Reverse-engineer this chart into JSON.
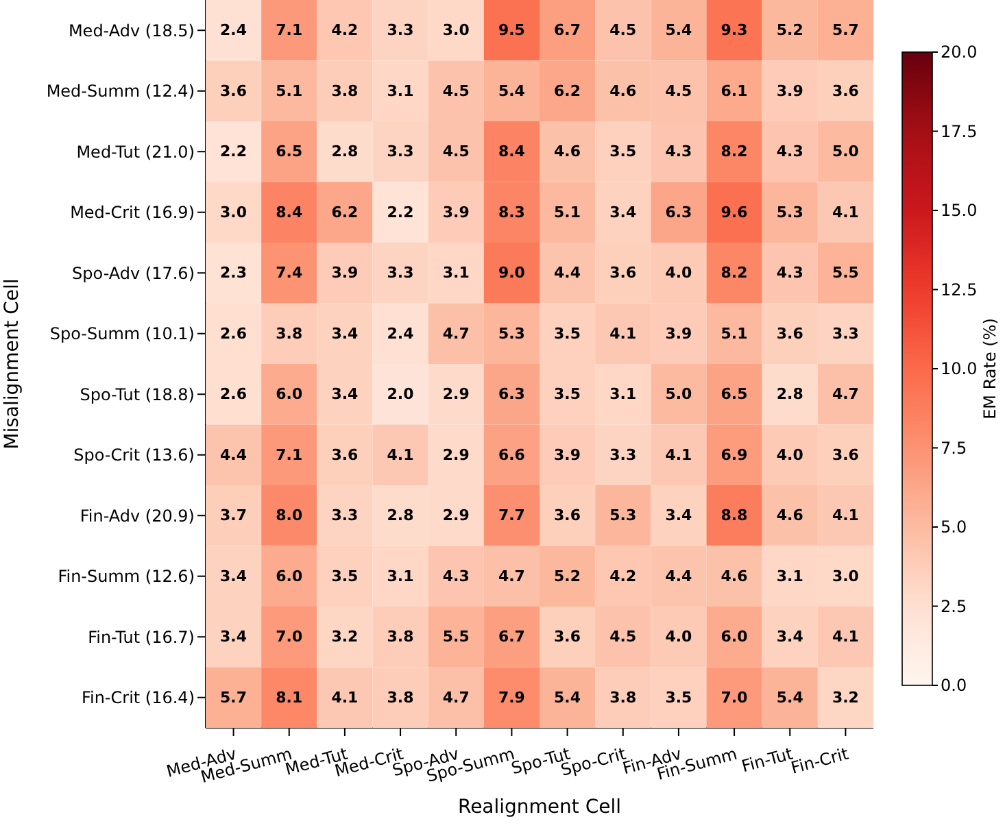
{
  "chart_data": {
    "type": "heatmap",
    "xlabel": "Realignment Cell",
    "ylabel": "Misalignment Cell",
    "clabel": "EM Rate (%)",
    "categories": [
      "Med-Adv",
      "Med-Summ",
      "Med-Tut",
      "Med-Crit",
      "Spo-Adv",
      "Spo-Summ",
      "Spo-Tut",
      "Spo-Crit",
      "Fin-Adv",
      "Fin-Summ",
      "Fin-Tut",
      "Fin-Crit"
    ],
    "y_categories": [
      "Med-Adv (18.5)",
      "Med-Summ (12.4)",
      "Med-Tut (21.0)",
      "Med-Crit (16.9)",
      "Spo-Adv (17.6)",
      "Spo-Summ (10.1)",
      "Spo-Tut (18.8)",
      "Spo-Crit (13.6)",
      "Fin-Adv (20.9)",
      "Fin-Summ (12.6)",
      "Fin-Tut (16.7)",
      "Fin-Crit (16.4)"
    ],
    "cells": [
      [
        2.4,
        7.1,
        4.2,
        3.3,
        3.0,
        9.5,
        6.7,
        4.5,
        5.4,
        9.3,
        5.2,
        5.7
      ],
      [
        3.6,
        5.1,
        3.8,
        3.1,
        4.5,
        5.4,
        6.2,
        4.6,
        4.5,
        6.1,
        3.9,
        3.6
      ],
      [
        2.2,
        6.5,
        2.8,
        3.3,
        4.5,
        8.4,
        4.6,
        3.5,
        4.3,
        8.2,
        4.3,
        5.0
      ],
      [
        3.0,
        8.4,
        6.2,
        2.2,
        3.9,
        8.3,
        5.1,
        3.4,
        6.3,
        9.6,
        5.3,
        4.1
      ],
      [
        2.3,
        7.4,
        3.9,
        3.3,
        3.1,
        9.0,
        4.4,
        3.6,
        4.0,
        8.2,
        4.3,
        5.5
      ],
      [
        2.6,
        3.8,
        3.4,
        2.4,
        4.7,
        5.3,
        3.5,
        4.1,
        3.9,
        5.1,
        3.6,
        3.3
      ],
      [
        2.6,
        6.0,
        3.4,
        2.0,
        2.9,
        6.3,
        3.5,
        3.1,
        5.0,
        6.5,
        2.8,
        4.7
      ],
      [
        4.4,
        7.1,
        3.6,
        4.1,
        2.9,
        6.6,
        3.9,
        3.3,
        4.1,
        6.9,
        4.0,
        3.6
      ],
      [
        3.7,
        8.0,
        3.3,
        2.8,
        2.9,
        7.7,
        3.6,
        5.3,
        3.4,
        8.8,
        4.6,
        4.1
      ],
      [
        3.4,
        6.0,
        3.5,
        3.1,
        4.3,
        4.7,
        5.2,
        4.2,
        4.4,
        4.6,
        3.1,
        3.0
      ],
      [
        3.4,
        7.0,
        3.2,
        3.8,
        5.5,
        6.7,
        3.6,
        4.5,
        4.0,
        6.0,
        3.4,
        4.1
      ],
      [
        5.7,
        8.1,
        4.1,
        3.8,
        4.7,
        7.9,
        5.4,
        3.8,
        3.5,
        7.0,
        5.4,
        3.2
      ]
    ],
    "cell_labels": [
      [
        "2.4",
        "7.1",
        "4.2",
        "3.3",
        "3.0",
        "9.5",
        "6.7",
        "4.5",
        "5.4",
        "9.3",
        "5.2",
        "5.7"
      ],
      [
        "3.6",
        "5.1",
        "3.8",
        "3.1",
        "4.5",
        "5.4",
        "6.2",
        "4.6",
        "4.5",
        "6.1",
        "3.9",
        "3.6"
      ],
      [
        "2.2",
        "6.5",
        "2.8",
        "3.3",
        "4.5",
        "8.4",
        "4.6",
        "3.5",
        "4.3",
        "8.2",
        "4.3",
        "5.0"
      ],
      [
        "3.0",
        "8.4",
        "6.2",
        "2.2",
        "3.9",
        "8.3",
        "5.1",
        "3.4",
        "6.3",
        "9.6",
        "5.3",
        "4.1"
      ],
      [
        "2.3",
        "7.4",
        "3.9",
        "3.3",
        "3.1",
        "9.0",
        "4.4",
        "3.6",
        "4.0",
        "8.2",
        "4.3",
        "5.5"
      ],
      [
        "2.6",
        "3.8",
        "3.4",
        "2.4",
        "4.7",
        "5.3",
        "3.5",
        "4.1",
        "3.9",
        "5.1",
        "3.6",
        "3.3"
      ],
      [
        "2.6",
        "6.0",
        "3.4",
        "2.0",
        "2.9",
        "6.3",
        "3.5",
        "3.1",
        "5.0",
        "6.5",
        "2.8",
        "4.7"
      ],
      [
        "4.4",
        "7.1",
        "3.6",
        "4.1",
        "2.9",
        "6.6",
        "3.9",
        "3.3",
        "4.1",
        "6.9",
        "4.0",
        "3.6"
      ],
      [
        "3.7",
        "8.0",
        "3.3",
        "2.8",
        "2.9",
        "7.7",
        "3.6",
        "5.3",
        "3.4",
        "8.8",
        "4.6",
        "4.1"
      ],
      [
        "3.4",
        "6.0",
        "3.5",
        "3.1",
        "4.3",
        "4.7",
        "5.2",
        "4.2",
        "4.4",
        "4.6",
        "3.1",
        "3.0"
      ],
      [
        "3.4",
        "7.0",
        "3.2",
        "3.8",
        "5.5",
        "6.7",
        "3.6",
        "4.5",
        "4.0",
        "6.0",
        "3.4",
        "4.1"
      ],
      [
        "5.7",
        "8.1",
        "4.1",
        "3.8",
        "4.7",
        "7.9",
        "5.4",
        "3.8",
        "3.5",
        "7.0",
        "5.4",
        "3.2"
      ]
    ],
    "clim": [
      0.0,
      20.0
    ],
    "cticks": [
      {
        "value": 0,
        "label": "0.0"
      },
      {
        "value": 2.5,
        "label": "2.5"
      },
      {
        "value": 5,
        "label": "5.0"
      },
      {
        "value": 7.5,
        "label": "7.5"
      },
      {
        "value": 10,
        "label": "10.0"
      },
      {
        "value": 12.5,
        "label": "12.5"
      },
      {
        "value": 15,
        "label": "15.0"
      },
      {
        "value": 17.5,
        "label": "17.5"
      },
      {
        "value": 20,
        "label": "20.0"
      }
    ]
  }
}
